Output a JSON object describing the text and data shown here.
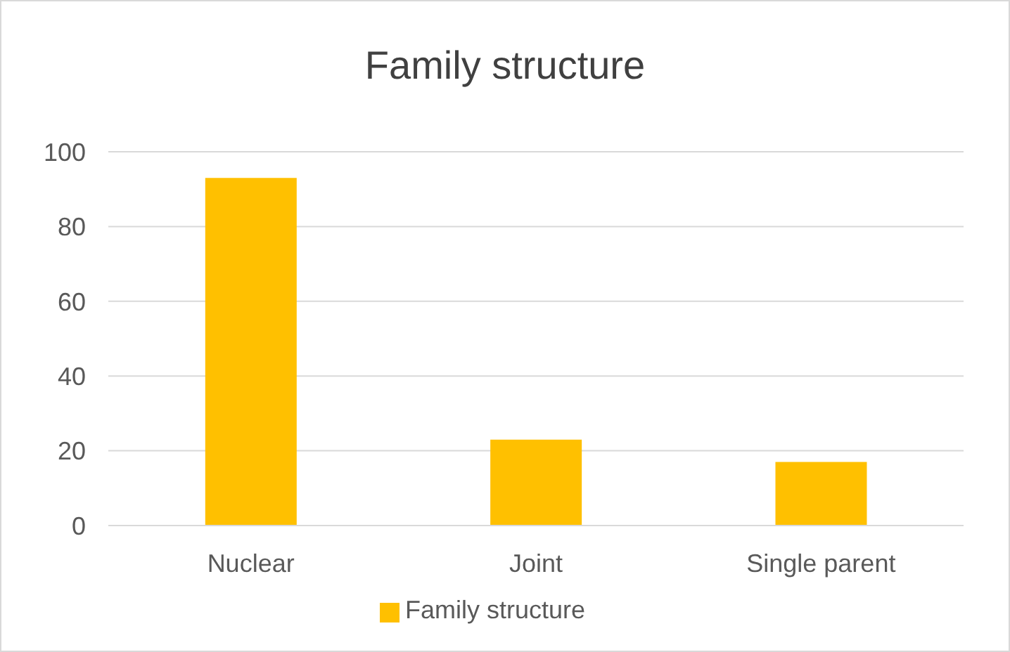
{
  "chart_data": {
    "type": "bar",
    "title": "Family structure",
    "categories": [
      "Nuclear",
      "Joint",
      "Single parent"
    ],
    "series": [
      {
        "name": "Family structure",
        "color": "#ffc000",
        "values": [
          93,
          23,
          17
        ]
      }
    ],
    "ylim": [
      0,
      100
    ],
    "yticks": [
      0,
      20,
      40,
      60,
      80,
      100
    ],
    "grid": "y",
    "legend": "bottom"
  }
}
